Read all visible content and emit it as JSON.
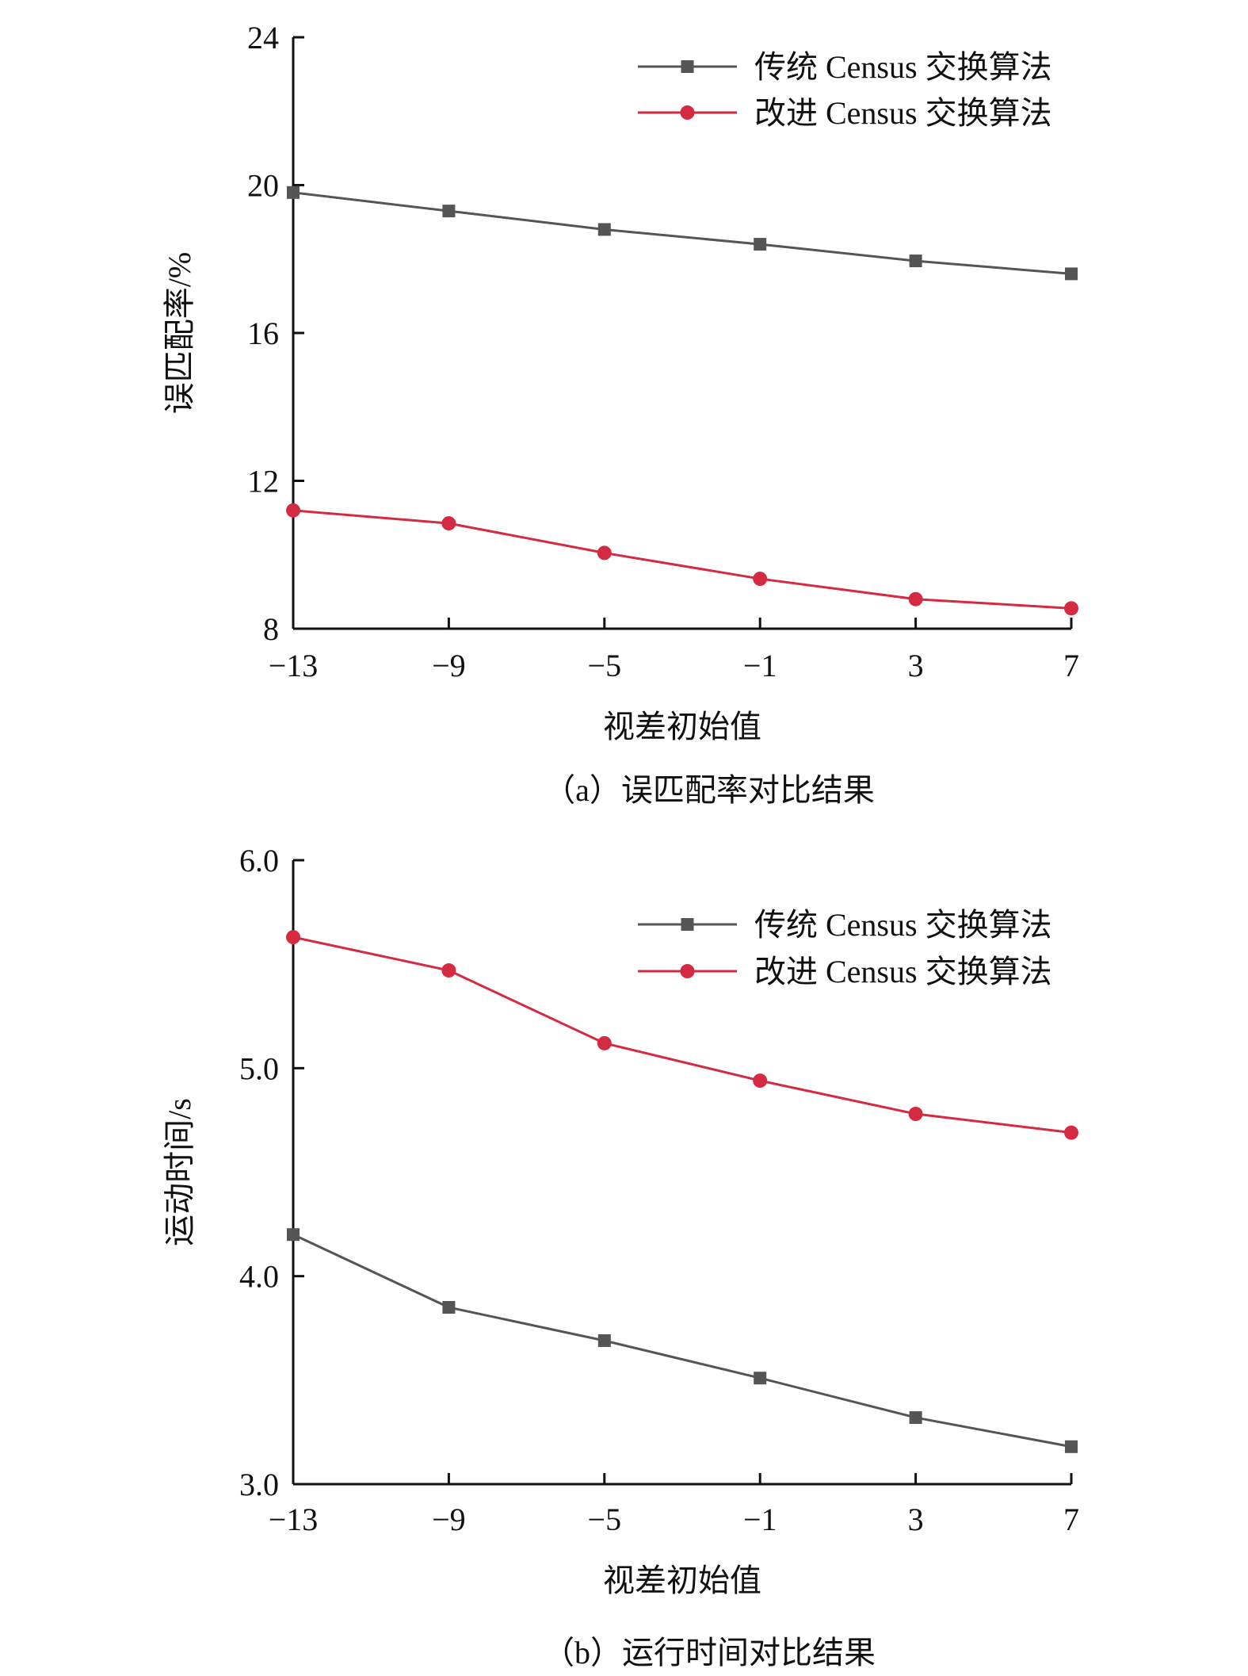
{
  "chart_data": [
    {
      "type": "line",
      "caption": "（a）误匹配率对比结果",
      "xlabel": "视差初始值",
      "ylabel": "误匹配率/%",
      "x": [
        -13,
        -9,
        -5,
        -1,
        3,
        7
      ],
      "x_tick_labels": [
        "−13",
        "−9",
        "−5",
        "−1",
        "3",
        "7"
      ],
      "xlim": [
        -13,
        7
      ],
      "ylim": [
        8,
        24
      ],
      "y_ticks": [
        8,
        12,
        16,
        20,
        24
      ],
      "y_tick_labels": [
        "8",
        "12",
        "16",
        "20",
        "24"
      ],
      "legend_position": "top-right",
      "grid": false,
      "series": [
        {
          "name": "传统 Census 交换算法",
          "values": [
            19.8,
            19.3,
            18.8,
            18.4,
            17.95,
            17.6
          ],
          "color": "#555555",
          "marker": "square"
        },
        {
          "name": "改进 Census 交换算法",
          "values": [
            11.2,
            10.85,
            10.05,
            9.35,
            8.8,
            8.55
          ],
          "color": "#d42a42",
          "marker": "circle"
        }
      ]
    },
    {
      "type": "line",
      "caption": "（b）运行时间对比结果",
      "xlabel": "视差初始值",
      "ylabel": "运动时间/s",
      "x": [
        -13,
        -9,
        -5,
        -1,
        3,
        7
      ],
      "x_tick_labels": [
        "−13",
        "−9",
        "−5",
        "−1",
        "3",
        "7"
      ],
      "xlim": [
        -13,
        7
      ],
      "ylim": [
        3.0,
        6.0
      ],
      "y_ticks": [
        3.0,
        4.0,
        5.0,
        6.0
      ],
      "y_tick_labels": [
        "3.0",
        "4.0",
        "5.0",
        "6.0"
      ],
      "legend_position": "top-right",
      "grid": false,
      "series": [
        {
          "name": "传统 Census 交换算法",
          "values": [
            4.2,
            3.85,
            3.69,
            3.51,
            3.32,
            3.18
          ],
          "color": "#555555",
          "marker": "square"
        },
        {
          "name": "改进 Census 交换算法",
          "values": [
            5.63,
            5.47,
            5.12,
            4.94,
            4.78,
            4.69
          ],
          "color": "#d42a42",
          "marker": "circle"
        }
      ]
    }
  ]
}
